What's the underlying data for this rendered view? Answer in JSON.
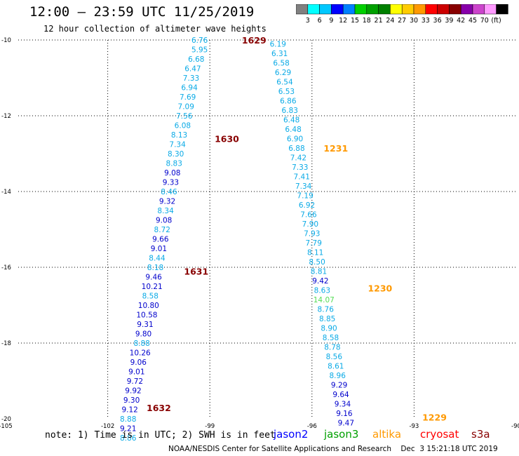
{
  "header": {
    "title": "12:00 — 23:59 UTC 11/25/2019",
    "subtitle": "12 hour collection of altimeter wave heights"
  },
  "color_scale": {
    "colors": [
      "#808080",
      "#00ffff",
      "#00c8ff",
      "#0000ff",
      "#0080ff",
      "#00d000",
      "#00a000",
      "#008000",
      "#ffff00",
      "#ffcc00",
      "#ff9900",
      "#ff0000",
      "#cc0000",
      "#880000",
      "#8800aa",
      "#cc44cc",
      "#ff99ff",
      "#000000"
    ],
    "labels": [
      "3",
      "6",
      "9",
      "12",
      "15",
      "18",
      "21",
      "24",
      "27",
      "30",
      "33",
      "36",
      "39",
      "42",
      "45",
      "70",
      "(ft)"
    ]
  },
  "note": "note: 1) Time is in UTC; 2) SWH is in feet",
  "legend": [
    {
      "label": "jason2",
      "color": "#0000ff"
    },
    {
      "label": "jason3",
      "color": "#00a000"
    },
    {
      "label": "altika",
      "color": "#ff9900"
    },
    {
      "label": "cryosat",
      "color": "#ff0000"
    },
    {
      "label": "s3a",
      "color": "#880000"
    }
  ],
  "footer": "NOAA/NESDIS Center for Satellite Applications and Research    Dec  3 15:21:18 UTC 2019",
  "chart_data": {
    "type": "scatter",
    "xlim": [
      -105,
      -90
    ],
    "ylim": [
      -20,
      -10
    ],
    "xticks": [
      -105,
      -102,
      -99,
      -96,
      -93,
      -90
    ],
    "yticks": [
      -10,
      -12,
      -14,
      -16,
      -18,
      -20
    ],
    "xtick_labels": [
      "-105",
      "-102",
      "-99",
      "-96",
      "-93",
      "-90"
    ],
    "ytick_labels": [
      "-10",
      "-12",
      "-14",
      "-16",
      "-18",
      "-20"
    ],
    "grid": true,
    "colors": {
      "lb": "#0aaae6",
      "db": "#0000cc",
      "green": "#55dd55",
      "maroon": "#880000",
      "orange": "#ff9900"
    },
    "time_labels": [
      {
        "text": "1629",
        "lon": -97.7,
        "lat": -10.0,
        "color": "maroon"
      },
      {
        "text": "1630",
        "lon": -98.5,
        "lat": -12.6,
        "color": "maroon"
      },
      {
        "text": "1631",
        "lon": -99.4,
        "lat": -16.1,
        "color": "maroon"
      },
      {
        "text": "1632",
        "lon": -100.5,
        "lat": -19.7,
        "color": "maroon"
      },
      {
        "text": "1231",
        "lon": -95.3,
        "lat": -12.85,
        "color": "orange"
      },
      {
        "text": "1230",
        "lon": -94.0,
        "lat": -16.55,
        "color": "orange"
      },
      {
        "text": "1229",
        "lon": -92.4,
        "lat": -19.95,
        "color": "orange"
      }
    ],
    "series": [
      {
        "name": "s3a",
        "points": [
          [
            "6.76",
            -99.3,
            -10.0,
            "lb"
          ],
          [
            "5.95",
            -99.3,
            -10.25,
            "lb"
          ],
          [
            "6.68",
            -99.4,
            -10.5,
            "lb"
          ],
          [
            "6.47",
            -99.5,
            -10.75,
            "lb"
          ],
          [
            "7.33",
            -99.55,
            -11.0,
            "lb"
          ],
          [
            "6.94",
            -99.6,
            -11.25,
            "lb"
          ],
          [
            "7.69",
            -99.65,
            -11.5,
            "lb"
          ],
          [
            "7.09",
            -99.7,
            -11.75,
            "lb"
          ],
          [
            "7.56",
            -99.75,
            -12.0,
            "lb"
          ],
          [
            "6.08",
            -99.8,
            -12.25,
            "lb"
          ],
          [
            "8.13",
            -99.9,
            -12.5,
            "lb"
          ],
          [
            "7.34",
            -99.95,
            -12.75,
            "lb"
          ],
          [
            "8.30",
            -100.0,
            -13.0,
            "lb"
          ],
          [
            "8.83",
            -100.05,
            -13.25,
            "lb"
          ],
          [
            "9.08",
            -100.1,
            -13.5,
            "db"
          ],
          [
            "9.33",
            -100.15,
            -13.75,
            "db"
          ],
          [
            "8.46",
            -100.2,
            -14.0,
            "lb"
          ],
          [
            "9.32",
            -100.25,
            -14.25,
            "db"
          ],
          [
            "8.34",
            -100.3,
            -14.5,
            "lb"
          ],
          [
            "9.08",
            -100.35,
            -14.75,
            "db"
          ],
          [
            "8.72",
            -100.4,
            -15.0,
            "lb"
          ],
          [
            "9.66",
            -100.45,
            -15.25,
            "db"
          ],
          [
            "9.01",
            -100.5,
            -15.5,
            "db"
          ],
          [
            "8.44",
            -100.55,
            -15.75,
            "lb"
          ],
          [
            "8.18",
            -100.6,
            -16.0,
            "lb"
          ],
          [
            "9.46",
            -100.65,
            -16.25,
            "db"
          ],
          [
            "10.21",
            -100.7,
            -16.5,
            "db"
          ],
          [
            "8.58",
            -100.75,
            -16.75,
            "lb"
          ],
          [
            "10.80",
            -100.8,
            -17.0,
            "db"
          ],
          [
            "10.58",
            -100.85,
            -17.25,
            "db"
          ],
          [
            "9.31",
            -100.9,
            -17.5,
            "db"
          ],
          [
            "9.80",
            -100.95,
            -17.75,
            "db"
          ],
          [
            "8.88",
            -101.0,
            -18.0,
            "lb"
          ],
          [
            "10.26",
            -101.05,
            -18.25,
            "db"
          ],
          [
            "9.06",
            -101.1,
            -18.5,
            "db"
          ],
          [
            "9.01",
            -101.15,
            -18.75,
            "db"
          ],
          [
            "9.72",
            -101.2,
            -19.0,
            "db"
          ],
          [
            "9.92",
            -101.25,
            -19.25,
            "db"
          ],
          [
            "9.30",
            -101.3,
            -19.5,
            "db"
          ],
          [
            "9.12",
            -101.35,
            -19.75,
            "db"
          ],
          [
            "8.88",
            -101.4,
            -20.0,
            "lb"
          ],
          [
            "9.21",
            -101.4,
            -20.25,
            "db"
          ],
          [
            "8.86",
            -101.4,
            -20.5,
            "lb"
          ]
        ]
      },
      {
        "name": "altika",
        "points": [
          [
            "6.19",
            -97.0,
            -10.1,
            "lb"
          ],
          [
            "6.31",
            -96.95,
            -10.35,
            "lb"
          ],
          [
            "6.58",
            -96.9,
            -10.6,
            "lb"
          ],
          [
            "6.29",
            -96.85,
            -10.85,
            "lb"
          ],
          [
            "6.54",
            -96.8,
            -11.1,
            "lb"
          ],
          [
            "6.53",
            -96.75,
            -11.35,
            "lb"
          ],
          [
            "6.86",
            -96.7,
            -11.6,
            "lb"
          ],
          [
            "6.83",
            -96.65,
            -11.85,
            "lb"
          ],
          [
            "6.48",
            -96.6,
            -12.1,
            "lb"
          ],
          [
            "6.48",
            -96.55,
            -12.35,
            "lb"
          ],
          [
            "6.90",
            -96.5,
            -12.6,
            "lb"
          ],
          [
            "6.88",
            -96.45,
            -12.85,
            "lb"
          ],
          [
            "7.42",
            -96.4,
            -13.1,
            "lb"
          ],
          [
            "7.33",
            -96.35,
            -13.35,
            "lb"
          ],
          [
            "7.41",
            -96.3,
            -13.6,
            "lb"
          ],
          [
            "7.34",
            -96.25,
            -13.85,
            "lb"
          ],
          [
            "7.19",
            -96.2,
            -14.1,
            "lb"
          ],
          [
            "6.92",
            -96.15,
            -14.35,
            "lb"
          ],
          [
            "7.66",
            -96.1,
            -14.6,
            "lb"
          ],
          [
            "7.90",
            -96.05,
            -14.85,
            "lb"
          ],
          [
            "7.93",
            -96.0,
            -15.1,
            "lb"
          ],
          [
            "7.79",
            -95.95,
            -15.35,
            "lb"
          ],
          [
            "8.11",
            -95.9,
            -15.6,
            "lb"
          ],
          [
            "8.50",
            -95.85,
            -15.85,
            "lb"
          ],
          [
            "8.81",
            -95.8,
            -16.1,
            "lb"
          ],
          [
            "9.42",
            -95.75,
            -16.35,
            "db"
          ],
          [
            "8.63",
            -95.7,
            -16.6,
            "lb"
          ],
          [
            "14.07",
            -95.65,
            -16.85,
            "green"
          ],
          [
            "8.76",
            -95.6,
            -17.1,
            "lb"
          ],
          [
            "8.85",
            -95.55,
            -17.35,
            "lb"
          ],
          [
            "8.90",
            -95.5,
            -17.6,
            "lb"
          ],
          [
            "8.58",
            -95.45,
            -17.85,
            "lb"
          ],
          [
            "8.78",
            -95.4,
            -18.1,
            "lb"
          ],
          [
            "8.56",
            -95.35,
            -18.35,
            "lb"
          ],
          [
            "8.61",
            -95.3,
            -18.6,
            "lb"
          ],
          [
            "8.96",
            -95.25,
            -18.85,
            "lb"
          ],
          [
            "9.29",
            -95.2,
            -19.1,
            "db"
          ],
          [
            "9.64",
            -95.15,
            -19.35,
            "db"
          ],
          [
            "9.34",
            -95.1,
            -19.6,
            "db"
          ],
          [
            "9.16",
            -95.05,
            -19.85,
            "db"
          ],
          [
            "9.47",
            -95.0,
            -20.1,
            "db"
          ]
        ]
      }
    ]
  }
}
